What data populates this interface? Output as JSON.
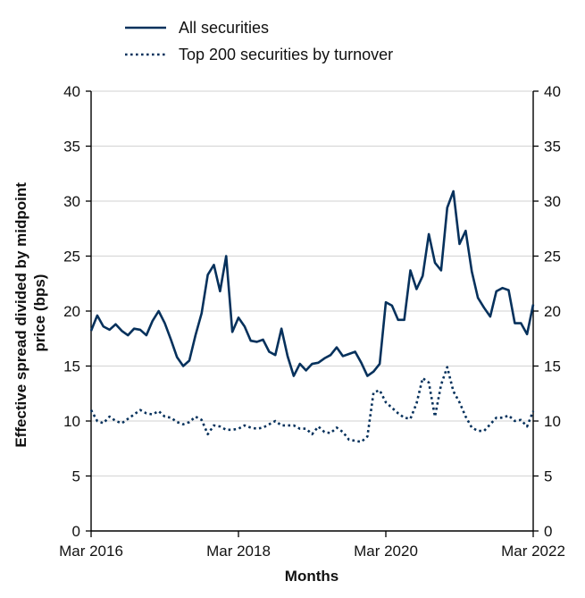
{
  "chart_data": {
    "type": "line",
    "xlabel": "Months",
    "ylabel_lines": [
      "Effective spread divided by midpoint",
      "price (bps)"
    ],
    "x_ticks": [
      "Mar 2016",
      "Mar 2018",
      "Mar 2020",
      "Mar 2022"
    ],
    "x_range": [
      "Mar 2016",
      "Mar 2022"
    ],
    "ylim": [
      0,
      40
    ],
    "y_ticks": [
      0,
      5,
      10,
      15,
      20,
      25,
      30,
      35,
      40
    ],
    "secondary_y_axis": true,
    "grid": "horizontal",
    "legend_position": "top-left, above plot",
    "series": [
      {
        "name": "All securities",
        "style": "solid",
        "color": "#06315c",
        "x": [
          "2016-03",
          "2016-04",
          "2016-05",
          "2016-06",
          "2016-07",
          "2016-08",
          "2016-09",
          "2016-10",
          "2016-11",
          "2016-12",
          "2017-01",
          "2017-02",
          "2017-03",
          "2017-04",
          "2017-05",
          "2017-06",
          "2017-07",
          "2017-08",
          "2017-09",
          "2017-10",
          "2017-11",
          "2017-12",
          "2018-01",
          "2018-02",
          "2018-03",
          "2018-04",
          "2018-05",
          "2018-06",
          "2018-07",
          "2018-08",
          "2018-09",
          "2018-10",
          "2018-11",
          "2018-12",
          "2019-01",
          "2019-02",
          "2019-03",
          "2019-04",
          "2019-05",
          "2019-06",
          "2019-07",
          "2019-08",
          "2019-09",
          "2019-10",
          "2019-11",
          "2019-12",
          "2020-01",
          "2020-02",
          "2020-03",
          "2020-04",
          "2020-05",
          "2020-06",
          "2020-07",
          "2020-08",
          "2020-09",
          "2020-10",
          "2020-11",
          "2020-12",
          "2021-01",
          "2021-02",
          "2021-03",
          "2021-04",
          "2021-05",
          "2021-06",
          "2021-07",
          "2021-08",
          "2021-09",
          "2021-10",
          "2021-11",
          "2021-12",
          "2022-01",
          "2022-02",
          "2022-03"
        ],
        "values": [
          18.2,
          19.6,
          18.6,
          18.3,
          18.8,
          18.2,
          17.8,
          18.4,
          18.3,
          17.8,
          19.1,
          20.0,
          18.9,
          17.4,
          15.8,
          15.0,
          15.5,
          17.8,
          19.8,
          23.3,
          24.2,
          21.8,
          25.0,
          18.1,
          19.4,
          18.6,
          17.3,
          17.2,
          17.4,
          16.3,
          16.0,
          18.4,
          15.9,
          14.1,
          15.2,
          14.6,
          15.2,
          15.3,
          15.7,
          16.0,
          16.7,
          15.9,
          16.1,
          16.3,
          15.3,
          14.1,
          14.5,
          15.2,
          20.8,
          20.5,
          19.2,
          19.2,
          23.7,
          22.0,
          23.2,
          27.0,
          24.4,
          23.7,
          29.4,
          30.9,
          26.1,
          27.3,
          23.6,
          21.2,
          20.3,
          19.5,
          21.8,
          22.1,
          21.9,
          18.9,
          18.9,
          17.9,
          20.6
        ]
      },
      {
        "name": "Top 200 securities by turnover",
        "style": "dotted",
        "color": "#06315c",
        "x": [
          "2016-03",
          "2016-04",
          "2016-05",
          "2016-06",
          "2016-07",
          "2016-08",
          "2016-09",
          "2016-10",
          "2016-11",
          "2016-12",
          "2017-01",
          "2017-02",
          "2017-03",
          "2017-04",
          "2017-05",
          "2017-06",
          "2017-07",
          "2017-08",
          "2017-09",
          "2017-10",
          "2017-11",
          "2017-12",
          "2018-01",
          "2018-02",
          "2018-03",
          "2018-04",
          "2018-05",
          "2018-06",
          "2018-07",
          "2018-08",
          "2018-09",
          "2018-10",
          "2018-11",
          "2018-12",
          "2019-01",
          "2019-02",
          "2019-03",
          "2019-04",
          "2019-05",
          "2019-06",
          "2019-07",
          "2019-08",
          "2019-09",
          "2019-10",
          "2019-11",
          "2019-12",
          "2020-01",
          "2020-02",
          "2020-03",
          "2020-04",
          "2020-05",
          "2020-06",
          "2020-07",
          "2020-08",
          "2020-09",
          "2020-10",
          "2020-11",
          "2020-12",
          "2021-01",
          "2021-02",
          "2021-03",
          "2021-04",
          "2021-05",
          "2021-06",
          "2021-07",
          "2021-08",
          "2021-09",
          "2021-10",
          "2021-11",
          "2021-12",
          "2022-01",
          "2022-02",
          "2022-03"
        ],
        "values": [
          11.0,
          10.0,
          9.8,
          10.4,
          10.0,
          9.8,
          10.2,
          10.6,
          11.0,
          10.7,
          10.6,
          10.9,
          10.4,
          10.3,
          9.9,
          9.7,
          9.9,
          10.4,
          10.1,
          8.8,
          9.6,
          9.5,
          9.2,
          9.2,
          9.3,
          9.6,
          9.4,
          9.3,
          9.4,
          9.7,
          10.0,
          9.6,
          9.6,
          9.6,
          9.3,
          9.3,
          8.8,
          9.5,
          9.0,
          8.9,
          9.4,
          9.0,
          8.3,
          8.2,
          8.1,
          8.6,
          12.6,
          12.8,
          11.7,
          11.2,
          10.7,
          10.3,
          10.2,
          11.6,
          13.9,
          13.5,
          10.4,
          13.3,
          14.9,
          12.7,
          11.7,
          10.4,
          9.4,
          9.1,
          9.1,
          9.7,
          10.3,
          10.3,
          10.5,
          10.0,
          10.1,
          9.5,
          10.9
        ]
      }
    ]
  }
}
